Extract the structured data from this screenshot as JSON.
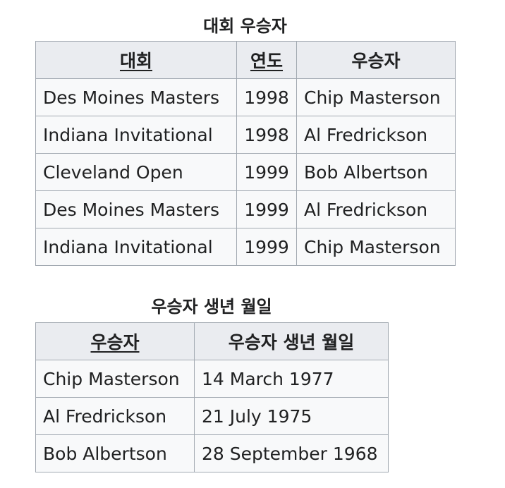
{
  "tournament_winners": {
    "caption": "대회 우승자",
    "headers": {
      "tournament": "대회",
      "year": "연도",
      "winner": "우승자"
    },
    "rows": [
      {
        "tournament": "Des Moines Masters",
        "year": "1998",
        "winner": "Chip Masterson"
      },
      {
        "tournament": "Indiana Invitational",
        "year": "1998",
        "winner": "Al Fredrickson"
      },
      {
        "tournament": "Cleveland Open",
        "year": "1999",
        "winner": "Bob Albertson"
      },
      {
        "tournament": "Des Moines Masters",
        "year": "1999",
        "winner": "Al Fredrickson"
      },
      {
        "tournament": "Indiana Invitational",
        "year": "1999",
        "winner": "Chip Masterson"
      }
    ]
  },
  "winner_birthdates": {
    "caption": "우승자 생년 월일",
    "headers": {
      "winner": "우승자",
      "birthdate": "우승자 생년 월일"
    },
    "rows": [
      {
        "winner": "Chip Masterson",
        "birthdate": "14 March 1977"
      },
      {
        "winner": "Al Fredrickson",
        "birthdate": "21 July 1975"
      },
      {
        "winner": "Bob Albertson",
        "birthdate": "28 September 1968"
      }
    ]
  }
}
